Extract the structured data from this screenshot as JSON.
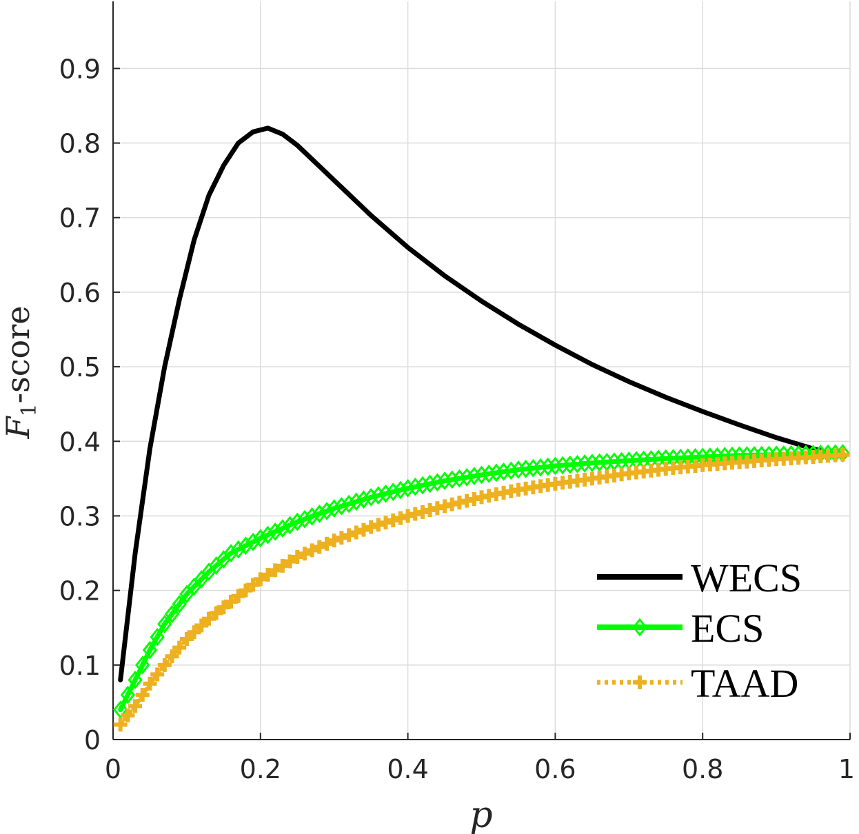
{
  "chart_data": {
    "type": "line",
    "xlabel": "p",
    "ylabel": {
      "main": "F",
      "sub": "1",
      "suffix": "-score"
    },
    "xlim": [
      0,
      1
    ],
    "ylim": [
      0,
      0.99
    ],
    "xticks": [
      0,
      0.2,
      0.4,
      0.6,
      0.8,
      1
    ],
    "xtick_labels": [
      "0",
      "0.2",
      "0.4",
      "0.6",
      "0.8",
      "1"
    ],
    "yticks": [
      0,
      0.1,
      0.2,
      0.3,
      0.4,
      0.5,
      0.6,
      0.7,
      0.8,
      0.9
    ],
    "ytick_labels": [
      "0",
      "0.1",
      "0.2",
      "0.3",
      "0.4",
      "0.5",
      "0.6",
      "0.7",
      "0.8",
      "0.9"
    ],
    "grid": true,
    "legend_position": "bottom-right",
    "series": [
      {
        "name": "WECS",
        "color": "#000000",
        "style": "solid",
        "marker": "none",
        "x": [
          0.01,
          0.03,
          0.05,
          0.07,
          0.09,
          0.11,
          0.13,
          0.15,
          0.17,
          0.19,
          0.21,
          0.23,
          0.25,
          0.3,
          0.35,
          0.4,
          0.45,
          0.5,
          0.55,
          0.6,
          0.65,
          0.7,
          0.75,
          0.8,
          0.85,
          0.9,
          0.95,
          0.97
        ],
        "y": [
          0.08,
          0.25,
          0.39,
          0.5,
          0.59,
          0.67,
          0.73,
          0.77,
          0.8,
          0.815,
          0.82,
          0.812,
          0.797,
          0.75,
          0.703,
          0.66,
          0.622,
          0.588,
          0.557,
          0.529,
          0.503,
          0.48,
          0.459,
          0.44,
          0.422,
          0.405,
          0.39,
          0.385
        ]
      },
      {
        "name": "ECS",
        "color": "#00ff00",
        "style": "solid",
        "marker": "diamond",
        "x": [
          0.01,
          0.03,
          0.05,
          0.07,
          0.1,
          0.13,
          0.16,
          0.2,
          0.25,
          0.3,
          0.35,
          0.4,
          0.45,
          0.5,
          0.55,
          0.6,
          0.65,
          0.7,
          0.75,
          0.8,
          0.85,
          0.9,
          0.95,
          0.99
        ],
        "y": [
          0.04,
          0.08,
          0.12,
          0.155,
          0.195,
          0.225,
          0.25,
          0.27,
          0.292,
          0.31,
          0.325,
          0.337,
          0.347,
          0.355,
          0.362,
          0.367,
          0.371,
          0.374,
          0.377,
          0.379,
          0.381,
          0.382,
          0.383,
          0.384
        ]
      },
      {
        "name": "TAAD",
        "color": "#edb120",
        "style": "dotted",
        "marker": "plus",
        "x": [
          0.01,
          0.03,
          0.05,
          0.07,
          0.1,
          0.13,
          0.16,
          0.2,
          0.25,
          0.3,
          0.35,
          0.4,
          0.45,
          0.5,
          0.55,
          0.6,
          0.65,
          0.7,
          0.75,
          0.8,
          0.85,
          0.9,
          0.95,
          0.99
        ],
        "y": [
          0.02,
          0.045,
          0.075,
          0.1,
          0.135,
          0.162,
          0.185,
          0.215,
          0.245,
          0.267,
          0.285,
          0.3,
          0.313,
          0.325,
          0.335,
          0.343,
          0.35,
          0.357,
          0.363,
          0.368,
          0.372,
          0.376,
          0.379,
          0.382
        ]
      }
    ]
  }
}
